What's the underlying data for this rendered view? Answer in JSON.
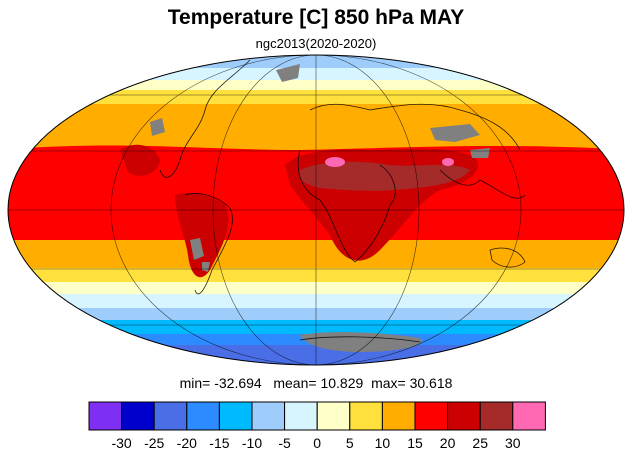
{
  "title": "Temperature [C] 850 hPa MAY",
  "subtitle": "ngc2013(2020-2020)",
  "stats": {
    "min_label": "min=",
    "min_value": "-32.694",
    "mean_label": "mean=",
    "mean_value": "10.829",
    "max_label": "max=",
    "max_value": "30.618"
  },
  "colorbar": {
    "colors": [
      "#7e2ff3",
      "#0000cc",
      "#4a6ee6",
      "#2c8cff",
      "#00baff",
      "#9ecdfb",
      "#d6f5ff",
      "#ffffc8",
      "#ffe03c",
      "#ffae00",
      "#ff0000",
      "#cc0000",
      "#a52a2a",
      "#ff69b4"
    ],
    "tick_labels": [
      "-30",
      "-25",
      "-20",
      "-15",
      "-10",
      "-5",
      "0",
      "5",
      "10",
      "15",
      "20",
      "25",
      "30"
    ]
  },
  "map": {
    "projection": "mollweide",
    "missing_color": "#808080",
    "gridlines": true,
    "coastlines": true
  }
}
